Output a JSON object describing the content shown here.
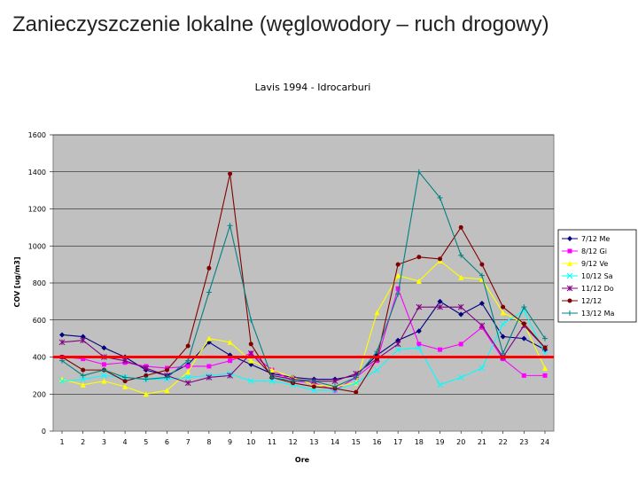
{
  "slide": {
    "title": "Zanieczyszczenie lokalne (węglowodory – ruch drogowy)"
  },
  "chart_data": {
    "type": "line",
    "title": "Lavis 1994 - Idrocarburi",
    "xlabel": "Ore",
    "ylabel": "COV [ug/m3]",
    "ylim": [
      0,
      1600
    ],
    "yticks": [
      0,
      200,
      400,
      600,
      800,
      1000,
      1200,
      1400,
      1600
    ],
    "categories": [
      "1",
      "2",
      "3",
      "4",
      "5",
      "6",
      "7",
      "8",
      "9",
      "10",
      "11",
      "12",
      "13",
      "14",
      "15",
      "16",
      "17",
      "18",
      "19",
      "20",
      "21",
      "22",
      "23",
      "24"
    ],
    "grid": true,
    "legend_position": "right",
    "plot_background": "#c0c0c0",
    "threshold": {
      "value": 400,
      "color": "#ff0000"
    },
    "series": [
      {
        "name": "7/12 Me",
        "color": "#000080",
        "marker": "diamond",
        "values": [
          520,
          510,
          450,
          400,
          330,
          300,
          360,
          480,
          410,
          360,
          310,
          290,
          280,
          280,
          300,
          410,
          490,
          540,
          700,
          630,
          690,
          510,
          500,
          440
        ]
      },
      {
        "name": "8/12 Gi",
        "color": "#ff00ff",
        "marker": "square",
        "values": [
          400,
          390,
          360,
          370,
          350,
          340,
          350,
          350,
          380,
          420,
          330,
          270,
          260,
          220,
          290,
          380,
          770,
          470,
          440,
          470,
          560,
          390,
          300,
          300
        ]
      },
      {
        "name": "9/12 Ve",
        "color": "#ffff00",
        "marker": "triangle",
        "values": [
          280,
          250,
          270,
          240,
          200,
          220,
          320,
          500,
          480,
          380,
          330,
          290,
          250,
          240,
          260,
          640,
          840,
          810,
          920,
          830,
          820,
          640,
          580,
          340
        ]
      },
      {
        "name": "10/12 Sa",
        "color": "#00ffff",
        "marker": "x",
        "values": [
          270,
          280,
          300,
          290,
          280,
          280,
          290,
          300,
          310,
          270,
          270,
          250,
          220,
          220,
          260,
          330,
          440,
          450,
          250,
          290,
          340,
          580,
          650,
          420
        ]
      },
      {
        "name": "11/12 Do",
        "color": "#800080",
        "marker": "star",
        "values": [
          480,
          490,
          400,
          380,
          340,
          300,
          260,
          290,
          300,
          420,
          300,
          280,
          270,
          270,
          310,
          390,
          470,
          670,
          670,
          670,
          570,
          400,
          570,
          450
        ]
      },
      {
        "name": "12/12",
        "color": "#800000",
        "marker": "circle",
        "values": [
          400,
          330,
          330,
          270,
          300,
          330,
          460,
          880,
          1390,
          470,
          290,
          260,
          240,
          230,
          210,
          390,
          900,
          940,
          930,
          1100,
          900,
          670,
          580,
          450
        ]
      },
      {
        "name": "13/12 Ma",
        "color": "#008080",
        "marker": "plus",
        "values": [
          380,
          300,
          330,
          290,
          280,
          290,
          380,
          750,
          1110,
          600,
          290,
          270,
          270,
          240,
          290,
          430,
          740,
          1400,
          1260,
          950,
          840,
          420,
          670,
          500
        ]
      }
    ]
  }
}
